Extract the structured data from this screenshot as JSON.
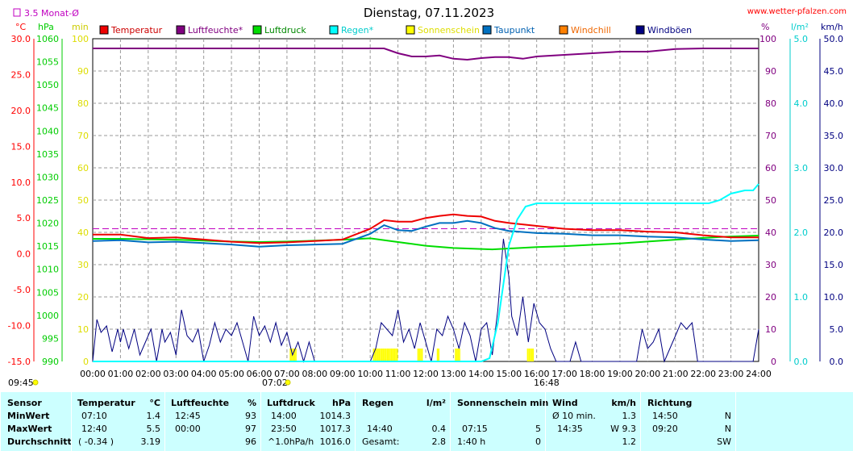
{
  "title": "Dienstag, 07.11.2023",
  "site": "www.wetter-pfalzen.com",
  "monthly_avg_label": "3.5 Monat-Ø",
  "units": {
    "temp": "°C",
    "press": "hPa",
    "min": "min",
    "pct": "%",
    "rain": "l/m²",
    "wind": "km/h"
  },
  "legend": [
    "Temperatur",
    "Luftfeuchte*",
    "Luftdruck",
    "Regen*",
    "Sonnenschein",
    "Taupunkt",
    "Windchill",
    "Windböen"
  ],
  "colors": {
    "temperature": "#ee0000",
    "humidity": "#800080",
    "pressure": "#00dd00",
    "rain": "#00ffff",
    "sunshine": "#ffff00",
    "dewpoint": "#0070c0",
    "windchill": "#ff8000",
    "gusts": "#000080",
    "temp_axis": "#ff0000",
    "press_axis": "#00cc00",
    "min_axis": "#dddd00",
    "rain_axis": "#00cccc"
  },
  "marks": {
    "sunrise": "07:02",
    "sunset": "16:48",
    "left_time": "09:45"
  },
  "chart_data": {
    "type": "line",
    "x_ticks": [
      "00:00",
      "01:00",
      "02:00",
      "03:00",
      "04:00",
      "05:00",
      "06:00",
      "07:00",
      "08:00",
      "09:00",
      "10:00",
      "11:00",
      "12:00",
      "13:00",
      "14:00",
      "15:00",
      "16:00",
      "17:00",
      "18:00",
      "19:00",
      "20:00",
      "21:00",
      "22:00",
      "23:00",
      "24:00"
    ],
    "axes": {
      "temp": {
        "ticks": [
          "30.0",
          "25.0",
          "20.0",
          "15.0",
          "10.0",
          "5.0",
          "0.0",
          "-5.0",
          "-10.0",
          "-15.0"
        ],
        "range": [
          -15,
          30
        ]
      },
      "press": {
        "ticks": [
          "1060",
          "1055",
          "1050",
          "1045",
          "1040",
          "1035",
          "1030",
          "1025",
          "1020",
          "1015",
          "1010",
          "1005",
          "1000",
          "995",
          "990"
        ],
        "range": [
          990,
          1060
        ]
      },
      "min": {
        "ticks": [
          "100",
          "90",
          "80",
          "70",
          "60",
          "50",
          "40",
          "30",
          "20",
          "10",
          "0"
        ],
        "range": [
          0,
          100
        ]
      },
      "pct": {
        "ticks": [
          "100",
          "90",
          "80",
          "70",
          "60",
          "50",
          "40",
          "30",
          "20",
          "10",
          "0"
        ],
        "range": [
          0,
          100
        ]
      },
      "rain": {
        "ticks": [
          "5.0",
          "4.0",
          "3.0",
          "2.0",
          "1.0",
          "0.0"
        ],
        "range": [
          0,
          5
        ]
      },
      "wind": {
        "ticks": [
          "50.0",
          "45.0",
          "40.0",
          "35.0",
          "30.0",
          "25.0",
          "20.0",
          "15.0",
          "10.0",
          "5.0",
          "0.0"
        ],
        "range": [
          0,
          50
        ]
      }
    },
    "monthly_avg_temp": 3.5,
    "series": [
      {
        "name": "Temperatur",
        "axis": "temp",
        "x": [
          0,
          1,
          2,
          3,
          4,
          5,
          6,
          7,
          8,
          9,
          10,
          10.5,
          11,
          11.5,
          12,
          12.5,
          13,
          13.5,
          14,
          14.5,
          15,
          16,
          17,
          18,
          19,
          20,
          21,
          22,
          23,
          24
        ],
        "y": [
          2.7,
          2.7,
          2.2,
          2.3,
          2.0,
          1.7,
          1.5,
          1.6,
          1.8,
          2.0,
          3.5,
          4.7,
          4.5,
          4.5,
          5.0,
          5.3,
          5.5,
          5.3,
          5.2,
          4.6,
          4.3,
          3.9,
          3.5,
          3.3,
          3.3,
          3.1,
          3.0,
          2.6,
          2.3,
          2.3
        ]
      },
      {
        "name": "Luftfeuchte*",
        "axis": "pct",
        "x": [
          0,
          1,
          2,
          3,
          4,
          5,
          6,
          7,
          8,
          9,
          10,
          10.5,
          11,
          11.5,
          12,
          12.5,
          13,
          13.5,
          14,
          14.5,
          15,
          15.5,
          16,
          17,
          18,
          19,
          20,
          21,
          22,
          23,
          24
        ],
        "y": [
          97,
          97,
          97,
          97,
          97,
          97,
          97,
          97,
          97,
          97,
          97,
          97,
          95.5,
          94.5,
          94.5,
          94.8,
          93.8,
          93.5,
          94,
          94.3,
          94.3,
          93.8,
          94.5,
          95,
          95.5,
          96,
          96,
          96.8,
          97,
          97,
          97
        ]
      },
      {
        "name": "Luftdruck",
        "axis": "press",
        "x": [
          0,
          1,
          2,
          3,
          4,
          5,
          6,
          7,
          8,
          9,
          10,
          11,
          12,
          13,
          14,
          14.4,
          15,
          16,
          17,
          18,
          19,
          20,
          21,
          22,
          23,
          24
        ],
        "y": [
          1016.6,
          1016.6,
          1016.5,
          1016.4,
          1016.2,
          1016.0,
          1015.9,
          1016.0,
          1016.2,
          1016.4,
          1016.7,
          1015.9,
          1015.1,
          1014.6,
          1014.4,
          1014.3,
          1014.5,
          1014.8,
          1015.0,
          1015.3,
          1015.6,
          1016.0,
          1016.4,
          1016.8,
          1017.1,
          1017.3
        ]
      },
      {
        "name": "Regen*",
        "axis": "rain",
        "x": [
          0,
          14,
          14.3,
          14.6,
          14.8,
          15,
          15.3,
          15.6,
          16,
          17,
          18,
          19,
          20,
          21,
          22,
          22.2,
          22.6,
          23,
          23.5,
          23.8,
          24
        ],
        "y": [
          0,
          0,
          0.05,
          0.6,
          1.2,
          1.8,
          2.2,
          2.4,
          2.45,
          2.45,
          2.45,
          2.45,
          2.45,
          2.45,
          2.45,
          2.45,
          2.5,
          2.6,
          2.65,
          2.65,
          2.75
        ]
      },
      {
        "name": "Taupunkt",
        "axis": "temp",
        "x": [
          0,
          1,
          2,
          3,
          4,
          5,
          6,
          7,
          8,
          9,
          10,
          10.5,
          11,
          11.5,
          12,
          12.5,
          13,
          13.5,
          14,
          14.5,
          15,
          16,
          17,
          18,
          19,
          20,
          21,
          22,
          23,
          24
        ],
        "y": [
          1.8,
          1.9,
          1.6,
          1.7,
          1.5,
          1.3,
          1.0,
          1.2,
          1.3,
          1.4,
          2.8,
          4.0,
          3.3,
          3.2,
          3.8,
          4.3,
          4.3,
          4.6,
          4.3,
          3.6,
          3.2,
          2.9,
          2.8,
          2.6,
          2.6,
          2.4,
          2.3,
          2.0,
          1.8,
          1.9
        ]
      },
      {
        "name": "Windböen",
        "axis": "wind",
        "x": [
          0,
          0.15,
          0.3,
          0.5,
          0.7,
          0.9,
          1.0,
          1.1,
          1.3,
          1.5,
          1.7,
          1.9,
          2.1,
          2.3,
          2.5,
          2.6,
          2.8,
          3.0,
          3.2,
          3.4,
          3.6,
          3.8,
          4.0,
          4.2,
          4.4,
          4.6,
          4.8,
          5.0,
          5.2,
          5.4,
          5.6,
          5.8,
          6.0,
          6.2,
          6.4,
          6.6,
          6.8,
          7.0,
          7.2,
          7.4,
          7.6,
          7.8,
          8.0,
          9.0,
          10.0,
          10.2,
          10.4,
          10.6,
          10.8,
          11.0,
          11.2,
          11.4,
          11.6,
          11.8,
          12.0,
          12.2,
          12.4,
          12.6,
          12.8,
          13.0,
          13.2,
          13.4,
          13.6,
          13.8,
          14.0,
          14.2,
          14.4,
          14.6,
          14.8,
          15.0,
          15.1,
          15.3,
          15.5,
          15.7,
          15.9,
          16.1,
          16.3,
          16.5,
          16.7,
          16.9,
          17.0,
          17.2,
          17.4,
          17.6,
          18.0,
          19.0,
          19.6,
          19.8,
          20.0,
          20.2,
          20.4,
          20.6,
          20.8,
          21.0,
          21.2,
          21.4,
          21.6,
          21.8,
          22.0,
          23.8,
          24.0
        ],
        "y": [
          0,
          6.5,
          4.5,
          5.5,
          1.5,
          5,
          3,
          5,
          2,
          5,
          1,
          3,
          5,
          0,
          5,
          3,
          4.5,
          1,
          8,
          4,
          3,
          5,
          0,
          2.5,
          6,
          3,
          5,
          4,
          6,
          3,
          0,
          7,
          4,
          5.5,
          3,
          6,
          2.5,
          4.5,
          1,
          3,
          0,
          3,
          0,
          0,
          0,
          2,
          6,
          5,
          4,
          8,
          3,
          5,
          2,
          6,
          3,
          0,
          5,
          4,
          7,
          5,
          2,
          6,
          4,
          0,
          5,
          6,
          1,
          8,
          19,
          13,
          7,
          4,
          10,
          3,
          9,
          6,
          5,
          2,
          0,
          0,
          0,
          0,
          3,
          0,
          0,
          0,
          0,
          5,
          2,
          3,
          5,
          0,
          2,
          4,
          6,
          5,
          6,
          0,
          0,
          0,
          5
        ]
      }
    ],
    "sunshine_intervals": [
      [
        7.1,
        7.3
      ],
      [
        10.1,
        11.0
      ],
      [
        11.7,
        11.9
      ],
      [
        12.4,
        12.5
      ],
      [
        13.05,
        13.25
      ],
      [
        15.65,
        15.9
      ]
    ]
  },
  "table": {
    "labels": [
      "Sensor",
      "MinWert",
      "MaxWert",
      "Durchschnitt"
    ],
    "temp": {
      "h": "Temperatur",
      "u": "°C",
      "rows": [
        [
          "07:10",
          "1.4"
        ],
        [
          "12:40",
          "5.5"
        ],
        [
          "( -0.34 )",
          "3.19"
        ]
      ]
    },
    "hum": {
      "h": "Luftfeuchte",
      "u": "%",
      "rows": [
        [
          "12:45",
          "93"
        ],
        [
          "00:00",
          "97"
        ],
        [
          "",
          "96"
        ]
      ]
    },
    "press": {
      "h": "Luftdruck",
      "u": "hPa",
      "rows": [
        [
          "14:00",
          "1014.3"
        ],
        [
          "23:50",
          "1017.3"
        ],
        [
          "^1.0hPa/h",
          "1016.0"
        ]
      ]
    },
    "rain": {
      "h": "Regen",
      "u": "l/m²",
      "rows": [
        [
          "",
          ""
        ],
        [
          "14:40",
          "0.4"
        ],
        [
          "Gesamt:",
          "2.8"
        ]
      ]
    },
    "sun": {
      "h": "Sonnenschein min",
      "u": "",
      "rows": [
        [
          "",
          ""
        ],
        [
          "07:15",
          "5"
        ],
        [
          "1:40 h",
          "0"
        ]
      ]
    },
    "wind": {
      "h": "Wind",
      "u": "km/h",
      "rows": [
        [
          "Ø 10 min.",
          "1.3"
        ],
        [
          "14:35",
          "W 9.3"
        ],
        [
          "",
          "1.2"
        ]
      ]
    },
    "dir": {
      "h": "Richtung",
      "u": "",
      "rows": [
        [
          "14:50",
          "N"
        ],
        [
          "09:20",
          "N"
        ],
        [
          "",
          "SW"
        ]
      ]
    }
  }
}
